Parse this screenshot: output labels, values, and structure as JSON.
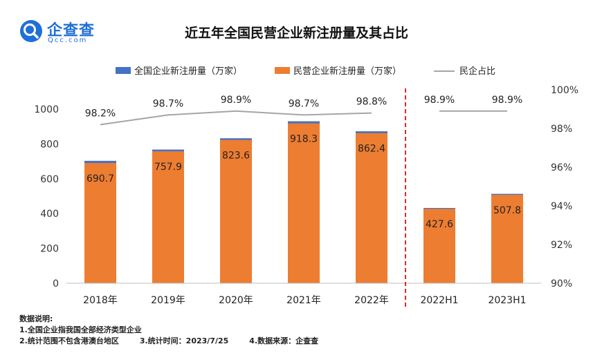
{
  "logo": {
    "name": "企查查",
    "domain": "Qcc.com"
  },
  "chart_data": {
    "type": "bar",
    "title": "近五年全国民营企业新注册量及其占比",
    "categories": [
      "2018年",
      "2019年",
      "2020年",
      "2021年",
      "2022年",
      "2022H1",
      "2023H1"
    ],
    "series": [
      {
        "name": "全国企业新注册量（万家）",
        "type": "bar",
        "color": "#4472c4",
        "values": [
          703.2,
          767.9,
          832.8,
          930.4,
          872.9,
          432.4,
          513.5
        ]
      },
      {
        "name": "民营企业新注册量（万家）",
        "type": "bar",
        "color": "#ed7d31",
        "values": [
          690.7,
          757.9,
          823.6,
          918.3,
          862.4,
          427.6,
          507.8
        ]
      },
      {
        "name": "民企占比",
        "type": "line",
        "color": "#a5a5a5",
        "values": [
          98.2,
          98.7,
          98.9,
          98.7,
          98.8,
          98.9,
          98.9
        ]
      }
    ],
    "bar_labels": [
      "690.7",
      "757.9",
      "823.6",
      "918.3",
      "862.4",
      "427.6",
      "507.8"
    ],
    "line_labels": [
      "98.2%",
      "98.7%",
      "98.9%",
      "98.7%",
      "98.8%",
      "98.9%",
      "98.9%"
    ],
    "ylim": [
      0,
      1000
    ],
    "yticks": [
      "0",
      "200",
      "400",
      "600",
      "800",
      "1000"
    ],
    "y2lim": [
      90,
      100
    ],
    "y2ticks": [
      "90%",
      "92%",
      "94%",
      "96%",
      "98%",
      "100%"
    ],
    "legend": "top",
    "divider_color": "#e0262a",
    "grid": false
  },
  "notes": {
    "heading": "数据说明:",
    "line1": "1.全国企业指我国全部经济类型企业",
    "line2a": "2.统计范围不包含港澳台地区",
    "line2b": "3.统计时间：2023/7/25",
    "line2c": "4.数据来源：企查查"
  }
}
